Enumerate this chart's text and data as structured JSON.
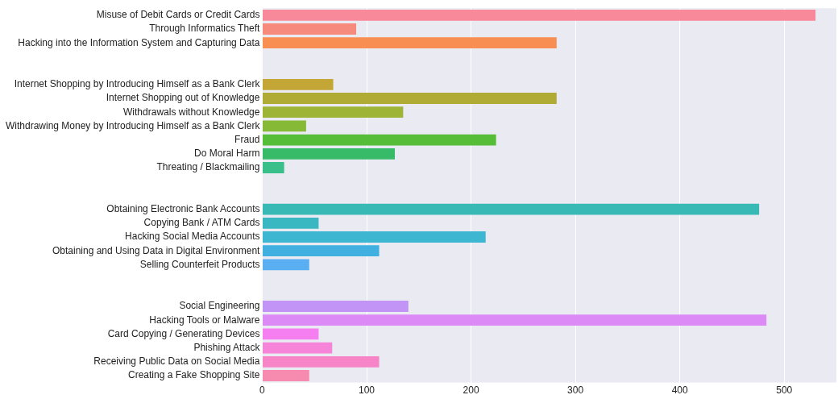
{
  "chart_data": {
    "type": "bar",
    "orientation": "horizontal",
    "categories": [
      "Misuse of Debit Cards or Credit Cards",
      "Through Informatics Theft",
      "Hacking into the Information System and Capturing Data",
      null,
      null,
      "Internet Shopping by Introducing Himself as a Bank Clerk",
      "Internet Shopping out of Knowledge",
      "Withdrawals without Knowledge",
      "Withdrawing Money by Introducing Himself as a Bank Clerk",
      "Fraud",
      "Do Moral Harm",
      "Threating / Blackmailing",
      null,
      null,
      "Obtaining Electronic Bank Accounts",
      "Copying Bank / ATM Cards",
      "Hacking Social Media Accounts",
      "Obtaining and Using Data in Digital Environment",
      "Selling Counterfeit Products",
      null,
      null,
      "Social Engineering",
      "Hacking Tools or Malware",
      "Card Copying / Generating Devices",
      "Phishing Attack",
      "Receiving Public Data on Social Media",
      "Creating a Fake Shopping Site"
    ],
    "values": [
      530,
      90,
      282,
      null,
      null,
      68,
      282,
      135,
      42,
      224,
      127,
      21,
      null,
      null,
      476,
      54,
      214,
      112,
      45,
      null,
      null,
      140,
      483,
      54,
      67,
      112,
      45
    ],
    "colors": [
      "#f7899a",
      "#f68a7c",
      "#f88e51",
      null,
      null,
      "#c4a636",
      "#b0ab34",
      "#9eb437",
      "#86b935",
      "#55bd38",
      "#37bb68",
      "#39bf8a",
      null,
      null,
      "#39b9b6",
      "#3ab8c1",
      "#3db6d1",
      "#3fb0e0",
      "#5aaff2",
      null,
      null,
      "#c294f5",
      "#dc8af5",
      "#f57ef0",
      "#f684d8",
      "#f684c6",
      "#f68aaf"
    ],
    "xlim": [
      0,
      550
    ],
    "xticks": [
      0,
      100,
      200,
      300,
      400,
      500
    ],
    "grid": "x",
    "legend": false
  }
}
